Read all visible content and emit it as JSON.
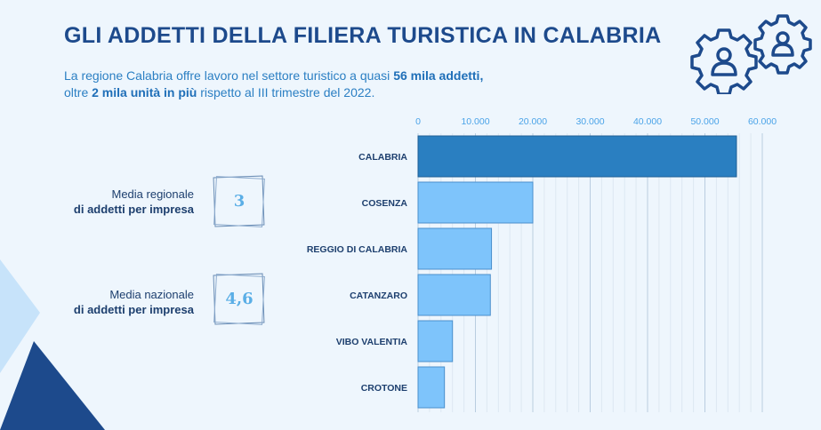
{
  "header": {
    "title": "GLI ADDETTI DELLA FILIERA TURISTICA IN CALABRIA",
    "sub_p1": "La regione Calabria offre lavoro nel settore turistico a quasi ",
    "sub_b1": "56 mila addetti,",
    "sub_p2": "oltre ",
    "sub_b2": "2 mila unità in più",
    "sub_p3": " rispetto al III trimestre del 2022."
  },
  "stats": [
    {
      "line1": "Media regionale",
      "line2": "di addetti per impresa",
      "value": "3"
    },
    {
      "line1": "Media nazionale",
      "line2": "di addetti per impresa",
      "value": "4,6"
    }
  ],
  "icons": {
    "gears": "gear-person-icon"
  },
  "colors": {
    "highlight_bar": "#2a7fc1",
    "bar": "#7ec4fb",
    "title": "#1d4a8c"
  },
  "chart_data": {
    "type": "bar",
    "orientation": "horizontal",
    "categories": [
      "CALABRIA",
      "COSENZA",
      "REGGIO DI CALABRIA",
      "CATANZARO",
      "VIBO VALENTIA",
      "CROTONE"
    ],
    "values": [
      55500,
      20000,
      12800,
      12600,
      6000,
      4600
    ],
    "xlim": [
      0,
      60000
    ],
    "xticks": [
      0,
      10000,
      20000,
      30000,
      40000,
      50000,
      60000
    ],
    "xtick_labels": [
      "0",
      "10.000",
      "20.000",
      "30.000",
      "40.000",
      "50.000",
      "60.000"
    ],
    "axis_position": "top",
    "grid": true,
    "title": "",
    "xlabel": "",
    "ylabel": ""
  }
}
